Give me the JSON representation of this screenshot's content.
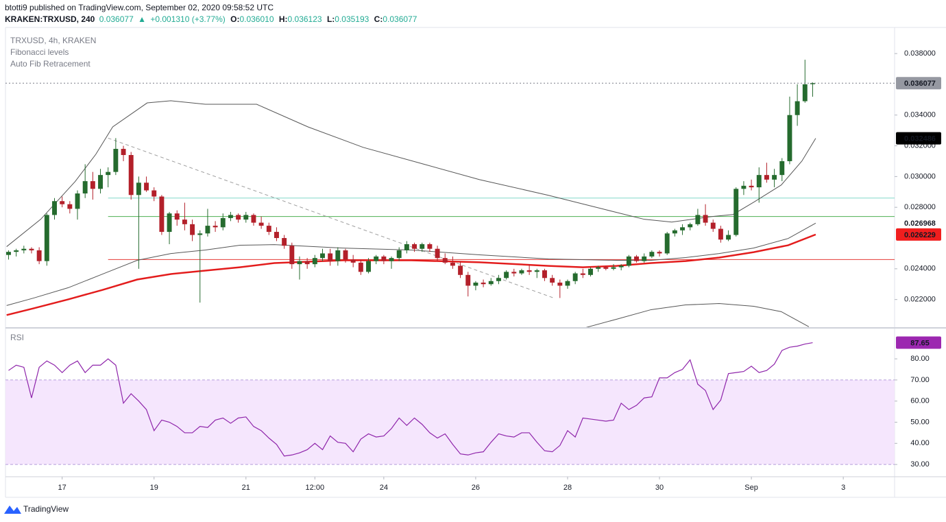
{
  "header": {
    "line1": "btotti9 published on TradingView.com, September 02, 2020 09:58:52 UTC",
    "symbol": "KRAKEN:TRXUSD, 240",
    "price": "0.036077",
    "arrow": "▲",
    "change": "+0.001310 (+3.77%)",
    "ohlc": [
      {
        "key": "O:",
        "value": "0.036010"
      },
      {
        "key": "H:",
        "value": "0.036123"
      },
      {
        "key": "L:",
        "value": "0.035193"
      },
      {
        "key": "C:",
        "value": "0.036077"
      }
    ]
  },
  "footer": {
    "brand": "TradingView"
  },
  "chart_data": [
    {
      "type": "candlestick",
      "legend": [
        "TRXUSD, 4h, KRAKEN",
        "Fibonacci levels",
        "Auto Fib Retracement"
      ],
      "up_color": "#256b2e",
      "down_color": "#b3202a",
      "last_label_color": "#9598a1",
      "open": [
        0.0249,
        0.0251,
        0.0252,
        0.0253,
        0.0252,
        0.0245,
        0.0275,
        0.0284,
        0.0282,
        0.0279,
        0.0289,
        0.0297,
        0.0292,
        0.0301,
        0.0303,
        0.0318,
        0.0314,
        0.0288,
        0.0296,
        0.0291,
        0.0287,
        0.0264,
        0.0276,
        0.0272,
        0.0269,
        0.0262,
        0.0263,
        0.0268,
        0.0267,
        0.0273,
        0.0275,
        0.0272,
        0.0275,
        0.027,
        0.0268,
        0.0264,
        0.026,
        0.0255,
        0.0243,
        0.0245,
        0.0243,
        0.0247,
        0.025,
        0.0245,
        0.0252,
        0.0246,
        0.0244,
        0.0238,
        0.0245,
        0.0248,
        0.0245,
        0.0247,
        0.0252,
        0.0256,
        0.0253,
        0.0256,
        0.0253,
        0.0247,
        0.0244,
        0.0242,
        0.0236,
        0.0229,
        0.0231,
        0.023,
        0.0232,
        0.0234,
        0.0238,
        0.0237,
        0.0239,
        0.0238,
        0.0239,
        0.0234,
        0.0231,
        0.0229,
        0.0232,
        0.0237,
        0.0236,
        0.024,
        0.0241,
        0.024,
        0.0241,
        0.0242,
        0.0248,
        0.0245,
        0.0248,
        0.0251,
        0.025,
        0.0263,
        0.0265,
        0.0267,
        0.0269,
        0.0275,
        0.027,
        0.0266,
        0.0259,
        0.0262,
        0.0292,
        0.0294,
        0.0293,
        0.0301,
        0.0298,
        0.0301,
        0.031,
        0.034,
        0.0349,
        0.03601
      ],
      "high": [
        0.0252,
        0.0253,
        0.0255,
        0.0254,
        0.0254,
        0.0276,
        0.0286,
        0.0287,
        0.0284,
        0.0291,
        0.0308,
        0.0303,
        0.0305,
        0.0306,
        0.0325,
        0.032,
        0.0316,
        0.03,
        0.03,
        0.0293,
        0.0288,
        0.0277,
        0.0278,
        0.0283,
        0.0272,
        0.0265,
        0.0279,
        0.0271,
        0.0276,
        0.0277,
        0.0276,
        0.0277,
        0.0276,
        0.0274,
        0.027,
        0.0267,
        0.0262,
        0.0257,
        0.0248,
        0.0247,
        0.0249,
        0.0253,
        0.0253,
        0.0254,
        0.0253,
        0.0249,
        0.0246,
        0.0247,
        0.0249,
        0.0249,
        0.0248,
        0.0254,
        0.0258,
        0.0257,
        0.0257,
        0.0257,
        0.0255,
        0.025,
        0.0248,
        0.0245,
        0.0238,
        0.0232,
        0.0233,
        0.0234,
        0.0236,
        0.0239,
        0.024,
        0.024,
        0.0243,
        0.024,
        0.024,
        0.0236,
        0.0233,
        0.0233,
        0.0238,
        0.024,
        0.0241,
        0.0242,
        0.0242,
        0.0243,
        0.0243,
        0.0249,
        0.0249,
        0.025,
        0.0252,
        0.0252,
        0.0264,
        0.0266,
        0.0269,
        0.027,
        0.0279,
        0.0282,
        0.0272,
        0.0268,
        0.0265,
        0.0293,
        0.0297,
        0.0298,
        0.0306,
        0.0309,
        0.0305,
        0.0312,
        0.0352,
        0.036,
        0.0376,
        0.036123
      ],
      "low": [
        0.0246,
        0.0248,
        0.025,
        0.025,
        0.0243,
        0.0242,
        0.0272,
        0.028,
        0.0276,
        0.0272,
        0.0286,
        0.0285,
        0.0289,
        0.0293,
        0.0301,
        0.031,
        0.0285,
        0.024,
        0.029,
        0.0284,
        0.0262,
        0.0256,
        0.0268,
        0.0265,
        0.0258,
        0.0218,
        0.0261,
        0.0264,
        0.0265,
        0.0271,
        0.027,
        0.027,
        0.0268,
        0.0266,
        0.0262,
        0.0258,
        0.0253,
        0.024,
        0.0233,
        0.024,
        0.0241,
        0.0245,
        0.0242,
        0.0242,
        0.0244,
        0.0241,
        0.0236,
        0.0237,
        0.0243,
        0.0243,
        0.024,
        0.0245,
        0.025,
        0.0251,
        0.0251,
        0.0251,
        0.0245,
        0.0243,
        0.024,
        0.0234,
        0.0222,
        0.0226,
        0.0228,
        0.0229,
        0.023,
        0.0233,
        0.0235,
        0.0236,
        0.0236,
        0.0234,
        0.0232,
        0.0229,
        0.0221,
        0.0227,
        0.023,
        0.0234,
        0.0235,
        0.0238,
        0.0239,
        0.0239,
        0.0239,
        0.0241,
        0.0244,
        0.0244,
        0.0247,
        0.0248,
        0.0249,
        0.0261,
        0.0262,
        0.0265,
        0.0268,
        0.0268,
        0.0264,
        0.0257,
        0.0258,
        0.0261,
        0.0288,
        0.0291,
        0.0283,
        0.0296,
        0.0293,
        0.0297,
        0.0308,
        0.0333,
        0.0348,
        0.035193
      ],
      "close": [
        0.0251,
        0.0252,
        0.0253,
        0.0252,
        0.0245,
        0.0275,
        0.0284,
        0.0282,
        0.0279,
        0.0289,
        0.0297,
        0.0292,
        0.0301,
        0.0303,
        0.0318,
        0.0314,
        0.0288,
        0.0296,
        0.0291,
        0.0287,
        0.0264,
        0.0276,
        0.0272,
        0.0269,
        0.0262,
        0.0263,
        0.0268,
        0.0267,
        0.0273,
        0.0275,
        0.0272,
        0.0275,
        0.027,
        0.0268,
        0.0264,
        0.026,
        0.0255,
        0.0243,
        0.0245,
        0.0243,
        0.0247,
        0.025,
        0.0245,
        0.0252,
        0.0246,
        0.0244,
        0.0238,
        0.0245,
        0.0248,
        0.0245,
        0.0247,
        0.0252,
        0.0256,
        0.0253,
        0.0256,
        0.0253,
        0.0247,
        0.0244,
        0.0242,
        0.0236,
        0.0229,
        0.0231,
        0.023,
        0.0232,
        0.0234,
        0.0238,
        0.0237,
        0.0239,
        0.0238,
        0.0239,
        0.0234,
        0.0231,
        0.0229,
        0.0232,
        0.0237,
        0.0236,
        0.024,
        0.0241,
        0.024,
        0.0241,
        0.0242,
        0.0248,
        0.0245,
        0.0248,
        0.0251,
        0.025,
        0.0263,
        0.0265,
        0.0267,
        0.0269,
        0.0275,
        0.027,
        0.0266,
        0.0259,
        0.0262,
        0.0292,
        0.0294,
        0.0293,
        0.0301,
        0.0298,
        0.0301,
        0.031,
        0.034,
        0.0349,
        0.036,
        0.036077
      ],
      "overlays": [
        {
          "color": "#555555",
          "width": 1,
          "label_color": "#000000",
          "label_text": "#ffffff",
          "x": [
            -0.25,
            4.2,
            8.7,
            11.4,
            13.6,
            18.1,
            21.2,
            25.7,
            32.4,
            39.1,
            46.3,
            54.4,
            61.5,
            70.5,
            77.6,
            83,
            86.6,
            91.9,
            94.6,
            97.3,
            100.9,
            103.6,
            105.4
          ],
          "values": [
            0.02544,
            0.02722,
            0.02968,
            0.03145,
            0.03323,
            0.03479,
            0.03493,
            0.0347,
            0.0347,
            0.03323,
            0.0319,
            0.03078,
            0.0298,
            0.02878,
            0.02789,
            0.02722,
            0.02704,
            0.0274,
            0.02753,
            0.02833,
            0.02945,
            0.03101,
            0.032486
          ]
        },
        {
          "color": "#555555",
          "width": 1,
          "label_color": "#ffffff",
          "label_text": "#000000",
          "x": [
            -0.25,
            3.3,
            7.8,
            12.3,
            16.8,
            21.2,
            25.7,
            30.2,
            34.7,
            43.6,
            52.6,
            61.5,
            70.5,
            79.4,
            83.9,
            88.4,
            92.8,
            97.3,
            101.8,
            105.4
          ],
          "values": [
            0.02161,
            0.0221,
            0.02277,
            0.02366,
            0.02455,
            0.02499,
            0.02522,
            0.02553,
            0.02557,
            0.02535,
            0.02522,
            0.02491,
            0.02464,
            0.02455,
            0.02455,
            0.02473,
            0.02499,
            0.02535,
            0.02597,
            0.026968
          ]
        },
        {
          "color": "#e31c1c",
          "width": 2.5,
          "label_color": "#f01e1e",
          "label_text": "#ffffff",
          "x": [
            -0.25,
            3.3,
            7.8,
            12.3,
            16.8,
            21.2,
            25.7,
            30.2,
            34.7,
            43.6,
            52.6,
            61.5,
            70.5,
            75,
            79.4,
            83.9,
            88.4,
            92.8,
            97.3,
            101.8,
            105.4
          ],
          "values": [
            0.02099,
            0.02143,
            0.02201,
            0.02263,
            0.0233,
            0.02366,
            0.02388,
            0.0241,
            0.02437,
            0.02455,
            0.02455,
            0.02442,
            0.02419,
            0.0241,
            0.02419,
            0.02437,
            0.0245,
            0.02473,
            0.02508,
            0.02553,
            0.026229
          ]
        },
        {
          "color": "#555555",
          "width": 1,
          "x": [
            75.4,
            79.4,
            83.9,
            88.4,
            92.8,
            97.3,
            100.9,
            104.5
          ],
          "values": [
            0.02018,
            0.02072,
            0.02134,
            0.02165,
            0.02174,
            0.02156,
            0.02121,
            0.02023
          ]
        }
      ],
      "hlines": [
        {
          "value": 0.0286,
          "start": 13,
          "color": "#80d8c9"
        },
        {
          "value": 0.0274,
          "start": 13,
          "color": "#4caf50"
        },
        {
          "value": 0.0246,
          "start": 13,
          "color": "#e53935"
        }
      ],
      "trend_line": {
        "x": [
          13,
          71.2
        ],
        "values": [
          0.0325,
          0.0221
        ],
        "color": "#9e9e9e"
      },
      "xlim": [
        -0.4,
        115.7
      ],
      "ylim": [
        0.0202,
        0.0397
      ],
      "yticks": [
        {
          "value": 0.022,
          "label": "0.022000"
        },
        {
          "value": 0.024,
          "label": "0.024000"
        },
        {
          "value": 0.028,
          "label": "0.028000"
        },
        {
          "value": 0.03,
          "label": "0.030000"
        },
        {
          "value": 0.032,
          "label": "0.032000"
        },
        {
          "value": 0.034,
          "label": "0.034000"
        },
        {
          "value": 0.038,
          "label": "0.038000"
        }
      ],
      "xticks": [
        {
          "value": 7,
          "label": "17"
        },
        {
          "value": 19,
          "label": "19"
        },
        {
          "value": 31,
          "label": "21"
        },
        {
          "value": 40,
          "label": "12:00"
        },
        {
          "value": 49,
          "label": "24"
        },
        {
          "value": 61,
          "label": "26"
        },
        {
          "value": 73,
          "label": "28"
        },
        {
          "value": 85,
          "label": "30"
        },
        {
          "value": 97,
          "label": "Sep"
        },
        {
          "value": 109,
          "label": "3"
        }
      ]
    },
    {
      "type": "line",
      "title": "RSI",
      "color": "#8e24aa",
      "label_color": "#9c27b0",
      "band": {
        "range": [
          30,
          70
        ],
        "color": "#f5e6fd"
      },
      "values": [
        74.5,
        77,
        76,
        61.5,
        76,
        79,
        77,
        73.5,
        77,
        79,
        73.5,
        77,
        77,
        80,
        77,
        59,
        63.5,
        60,
        56,
        46,
        51,
        50,
        48,
        45,
        45,
        48,
        47.5,
        51,
        52,
        49.5,
        52,
        52.5,
        48,
        46,
        42.5,
        39.5,
        34,
        34.5,
        35.5,
        37,
        40,
        37,
        43.5,
        40.5,
        40,
        36,
        42,
        44.5,
        43,
        43.5,
        47,
        52,
        48.5,
        52,
        49,
        45,
        42.5,
        44.5,
        39.5,
        35,
        34.5,
        35.5,
        36,
        40.5,
        44.5,
        43.5,
        43,
        45,
        45,
        40.5,
        36.5,
        36,
        39,
        46,
        43,
        52,
        51.5,
        51,
        50.5,
        51,
        59,
        56,
        58,
        61.5,
        62,
        71,
        71,
        73.5,
        75,
        79.5,
        68,
        65,
        56,
        60.5,
        73,
        73.5,
        74,
        76.5,
        73.5,
        74.5,
        77.5,
        84,
        85.5,
        86,
        87,
        87.65
      ],
      "xlim": [
        -0.4,
        115.7
      ],
      "ylim": [
        24.2,
        94
      ],
      "yticks": [
        {
          "value": 30,
          "label": "30.00"
        },
        {
          "value": 40,
          "label": "40.00"
        },
        {
          "value": 50,
          "label": "50.00"
        },
        {
          "value": 60,
          "label": "60.00"
        },
        {
          "value": 70,
          "label": "70.00"
        },
        {
          "value": 80,
          "label": "80.00"
        }
      ]
    }
  ]
}
